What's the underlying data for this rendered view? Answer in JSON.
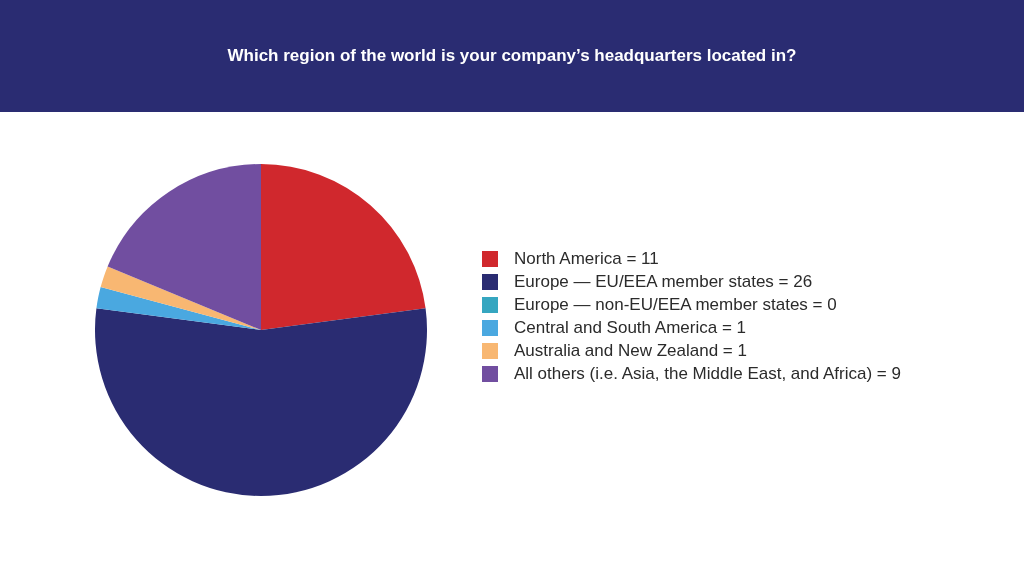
{
  "chart_data": {
    "type": "pie",
    "title": "Which region of the world is your company’s headquarters located in?",
    "categories": [
      "North America = 11",
      "Europe — EU/EEA member states = 26",
      "Europe — non-EU/EEA member states = 0",
      "Central and South America = 1",
      "Australia and New Zealand = 1",
      "All others (i.e. Asia, the Middle East, and Africa) = 9"
    ],
    "values": [
      11,
      26,
      0,
      1,
      1,
      9
    ],
    "colors": [
      "#d0282d",
      "#2a2c72",
      "#35a6c0",
      "#4aa8e0",
      "#f8b772",
      "#714ea0"
    ],
    "legend": "right"
  }
}
